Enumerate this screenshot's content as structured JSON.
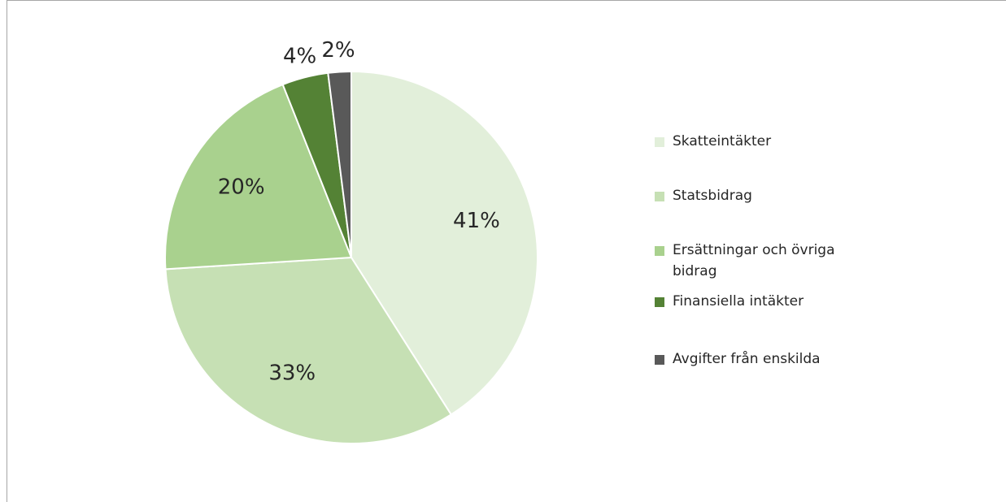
{
  "chart_data": {
    "type": "pie",
    "categories": [
      "Skatteintäkter",
      "Statsbidrag",
      "Ersättningar och övriga bidrag",
      "Finansiella intäkter",
      "Avgifter från enskilda"
    ],
    "values": [
      41,
      33,
      20,
      4,
      2
    ],
    "value_labels": [
      "41%",
      "33%",
      "20%",
      "4%",
      "2%"
    ],
    "colors": [
      "#e2efda",
      "#c6e0b4",
      "#a9d18e",
      "#548235",
      "#595959"
    ],
    "legend": "right"
  }
}
